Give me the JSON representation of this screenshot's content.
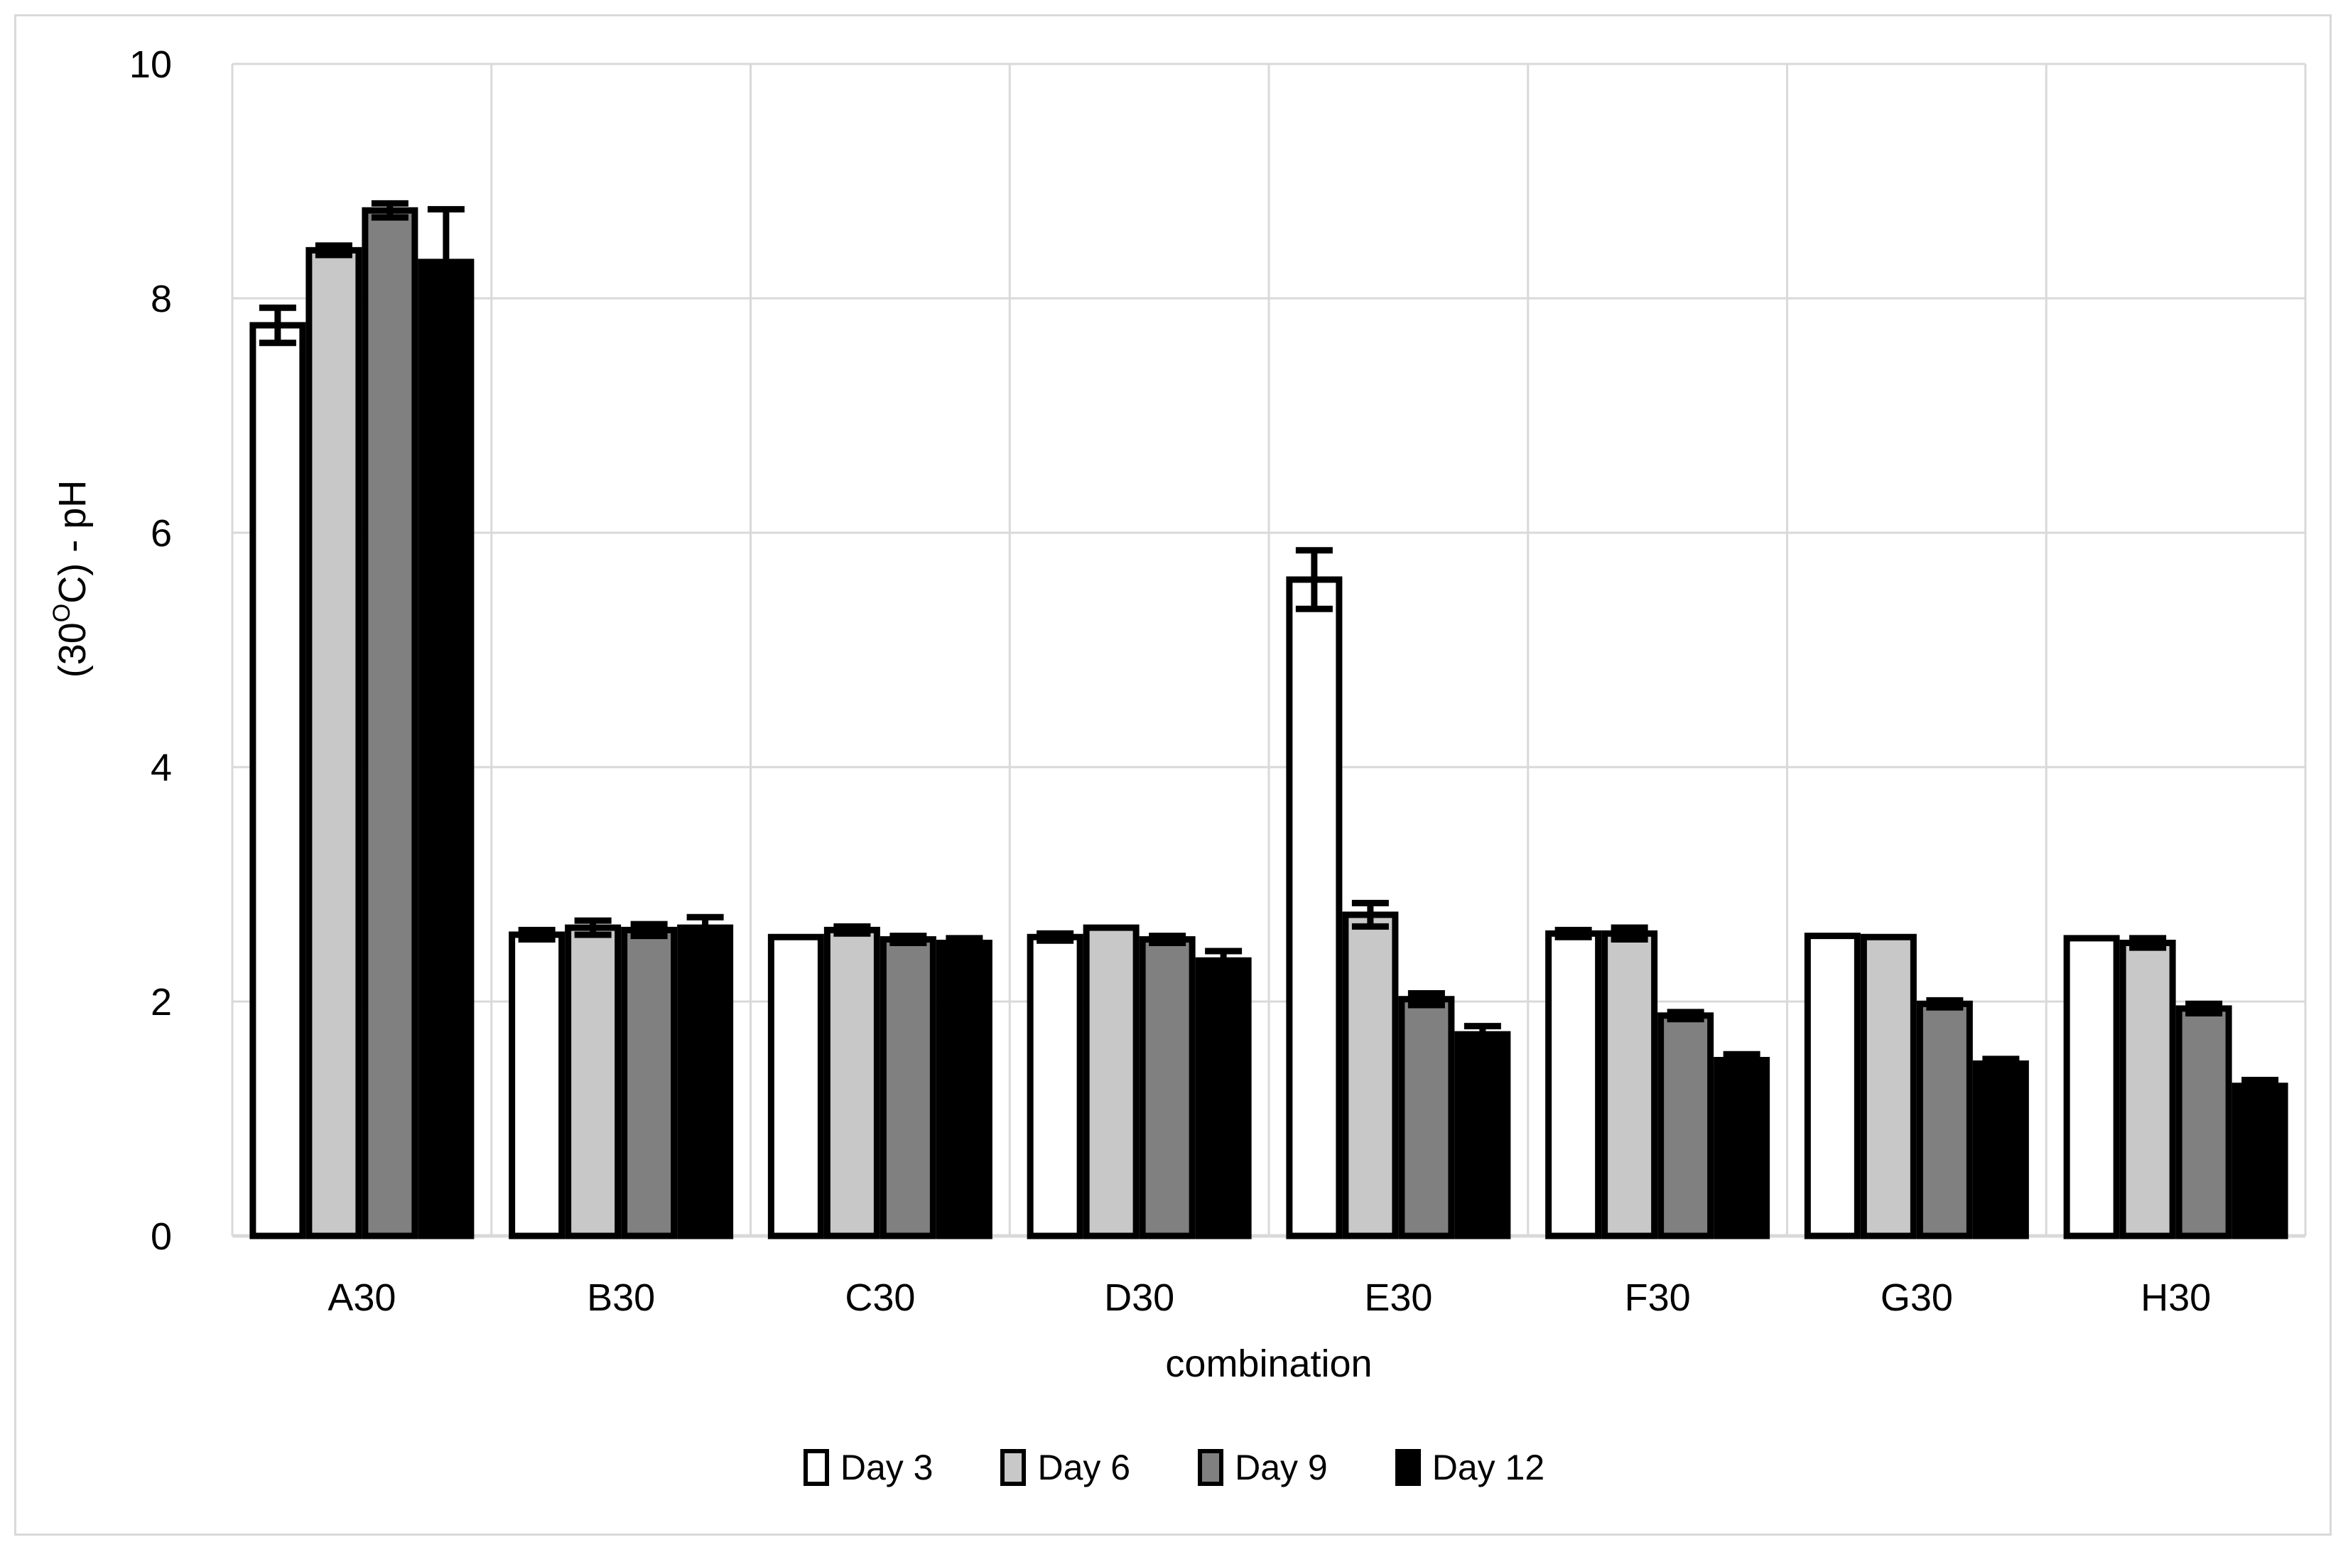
{
  "figure": {
    "background": "#ffffff",
    "border_color": "#d9d9d9"
  },
  "chart_data": {
    "type": "bar",
    "title": "",
    "xlabel": "combination",
    "ylabel": "(30OC) - pH",
    "ylabel_parts": {
      "prefix": "(30",
      "superscript": "O",
      "suffix": "C) - pH"
    },
    "categories": [
      "A30",
      "B30",
      "C30",
      "D30",
      "E30",
      "F30",
      "G30",
      "H30"
    ],
    "series": [
      {
        "name": "Day 3",
        "fill": "#ffffff",
        "border": "#000000",
        "values": [
          7.77,
          2.57,
          2.55,
          2.55,
          5.6,
          2.58,
          2.56,
          2.54
        ],
        "errors": [
          0.15,
          0.04,
          0.0,
          0.03,
          0.25,
          0.03,
          0.0,
          0.0
        ]
      },
      {
        "name": "Day 6",
        "fill": "#c8c8c8",
        "border": "#000000",
        "values": [
          8.41,
          2.63,
          2.61,
          2.63,
          2.74,
          2.58,
          2.55,
          2.5
        ],
        "errors": [
          0.04,
          0.06,
          0.03,
          0.0,
          0.1,
          0.05,
          0.0,
          0.04
        ]
      },
      {
        "name": "Day 9",
        "fill": "#808080",
        "border": "#000000",
        "values": [
          8.75,
          2.61,
          2.53,
          2.53,
          2.02,
          1.88,
          1.98,
          1.94
        ],
        "errors": [
          0.06,
          0.05,
          0.03,
          0.03,
          0.05,
          0.03,
          0.03,
          0.04
        ]
      },
      {
        "name": "Day 12",
        "fill": "#000000",
        "border": "#000000",
        "values": [
          8.31,
          2.63,
          2.5,
          2.35,
          1.72,
          1.5,
          1.47,
          1.28
        ],
        "errors": [
          0.45,
          0.09,
          0.04,
          0.08,
          0.07,
          0.05,
          0.04,
          0.05
        ]
      }
    ],
    "ylim": [
      0,
      10
    ],
    "yticks": [
      0,
      2,
      4,
      6,
      8,
      10
    ],
    "grid": true,
    "gridline_color": "#d9d9d9",
    "axis_text_color": "#000000",
    "error_bar_color": "#000000",
    "legend_position": "bottom"
  }
}
